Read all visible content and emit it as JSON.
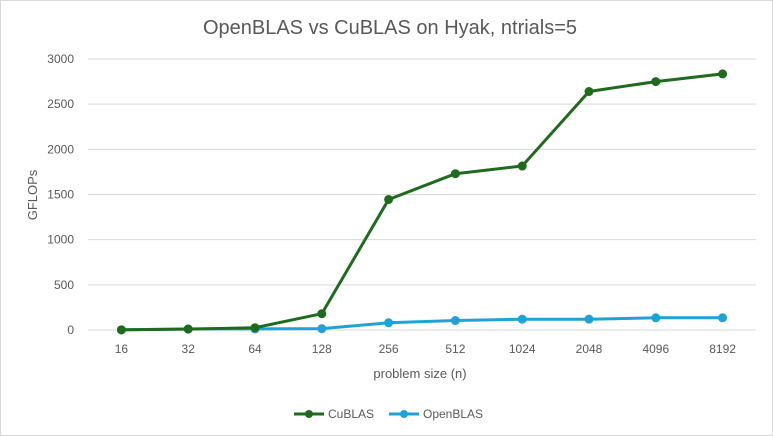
{
  "chart_data": {
    "type": "line",
    "title": "OpenBLAS vs CuBLAS on Hyak, ntrials=5",
    "xlabel": "problem size (n)",
    "ylabel": "GFLOPs",
    "categories": [
      "16",
      "32",
      "64",
      "128",
      "256",
      "512",
      "1024",
      "2048",
      "4096",
      "8192"
    ],
    "ylim": [
      0,
      3000
    ],
    "yticks": [
      "0",
      "500",
      "1000",
      "1500",
      "2000",
      "2500",
      "3000"
    ],
    "grid": true,
    "legend_position": "bottom",
    "series": [
      {
        "name": "CuBLAS",
        "color": "#1e6b1e",
        "values": [
          2,
          10,
          25,
          180,
          1445,
          1730,
          1815,
          2640,
          2750,
          2835
        ]
      },
      {
        "name": "OpenBLAS",
        "color": "#1fa3d6",
        "values": [
          2,
          12,
          12,
          15,
          80,
          105,
          120,
          120,
          135,
          135
        ]
      }
    ]
  }
}
